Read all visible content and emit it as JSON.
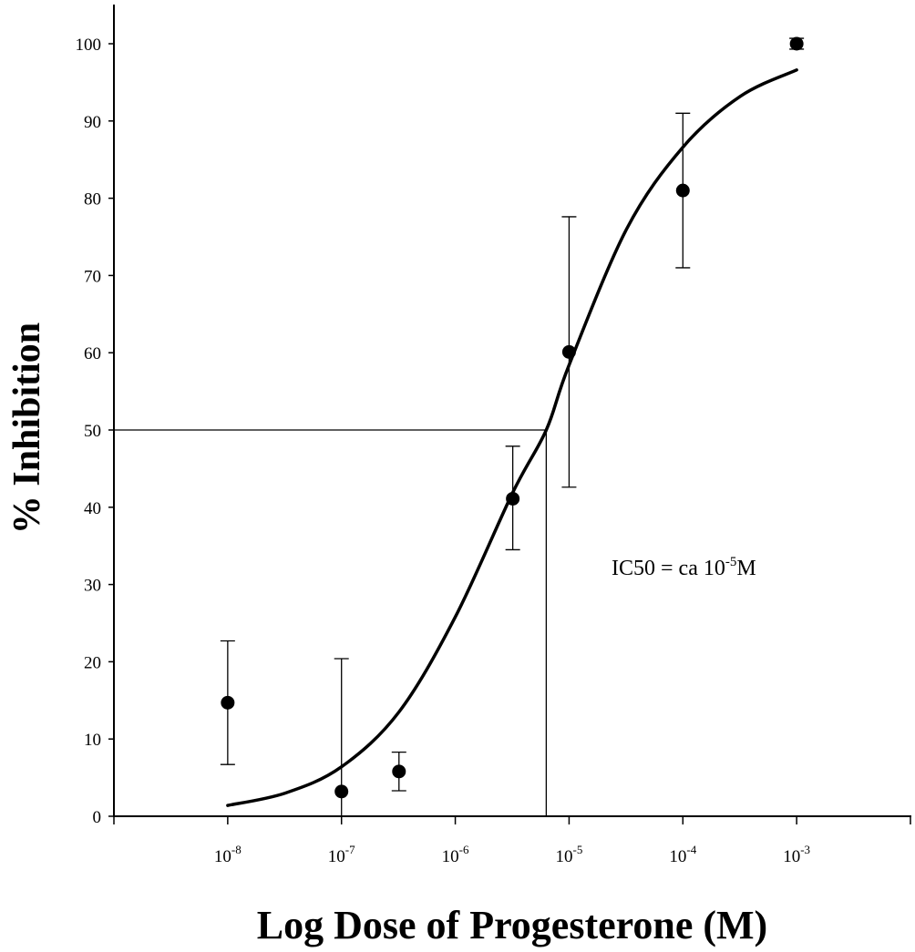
{
  "chart_data": {
    "type": "scatter",
    "title": "",
    "xlabel": "Log Dose of Progesterone (M)",
    "ylabel": "% Inhibition",
    "x_scale": "log",
    "xlim": [
      1e-09,
      0.01
    ],
    "ylim": [
      0,
      100
    ],
    "y_ticks": [
      0,
      10,
      20,
      30,
      40,
      50,
      60,
      70,
      80,
      90,
      100
    ],
    "x_ticks": [
      {
        "base": "10",
        "exp": "-8",
        "value": 1e-08
      },
      {
        "base": "10",
        "exp": "-7",
        "value": 1e-07
      },
      {
        "base": "10",
        "exp": "-6",
        "value": 1e-06
      },
      {
        "base": "10",
        "exp": "-5",
        "value": 1e-05
      },
      {
        "base": "10",
        "exp": "-4",
        "value": 0.0001
      },
      {
        "base": "10",
        "exp": "-3",
        "value": 0.001
      }
    ],
    "points": [
      {
        "x": 1e-08,
        "y": 14.7,
        "err_low": 6.7,
        "err_high": 22.7
      },
      {
        "x": 1e-07,
        "y": 3.2,
        "err_low": 0,
        "err_high": 20.4
      },
      {
        "x": 3.2e-07,
        "y": 5.8,
        "err_low": 3.3,
        "err_high": 8.3
      },
      {
        "x": 3.2e-06,
        "y": 41.1,
        "err_low": 34.5,
        "err_high": 47.9
      },
      {
        "x": 1e-05,
        "y": 60.1,
        "err_low": 42.6,
        "err_high": 77.6
      },
      {
        "x": 0.0001,
        "y": 81.0,
        "err_low": 71.0,
        "err_high": 91.0
      },
      {
        "x": 0.001,
        "y": 100.0,
        "err_low": 99.3,
        "err_high": 100.7
      }
    ],
    "fit_curve": {
      "x": [
        1e-08,
        3.2e-08,
        1e-07,
        3.2e-07,
        1e-06,
        3.2e-06,
        6.3e-06,
        1e-05,
        3.2e-05,
        0.0001,
        0.00032,
        0.001
      ],
      "y": [
        1.4,
        3.0,
        6.4,
        13.5,
        25.8,
        41.9,
        50.0,
        58.4,
        76.0,
        86.6,
        93.2,
        96.6
      ]
    },
    "ic50_reference": {
      "x": 6.3e-06,
      "y": 50
    },
    "annotation": {
      "prefix": "IC50 = ca 10",
      "exp": "-5",
      "suffix": "M"
    }
  }
}
